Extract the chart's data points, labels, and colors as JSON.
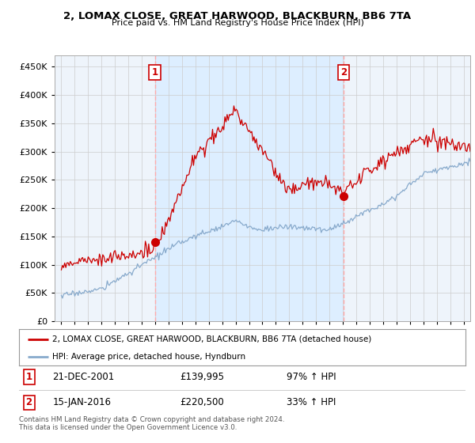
{
  "title1": "2, LOMAX CLOSE, GREAT HARWOOD, BLACKBURN, BB6 7TA",
  "title2": "Price paid vs. HM Land Registry's House Price Index (HPI)",
  "yticks": [
    0,
    50000,
    100000,
    150000,
    200000,
    250000,
    300000,
    350000,
    400000,
    450000
  ],
  "sale1": {
    "date_num": 2001.97,
    "price": 139995,
    "label": "1",
    "hpi_pct": "97% ↑ HPI",
    "date_str": "21-DEC-2001"
  },
  "sale2": {
    "date_num": 2016.04,
    "price": 220500,
    "label": "2",
    "hpi_pct": "33% ↑ HPI",
    "date_str": "15-JAN-2016"
  },
  "line_color_sale": "#cc0000",
  "line_color_hpi": "#88aacc",
  "vline_color": "#ffaaaa",
  "shade_color": "#ddeeff",
  "background_color": "#ffffff",
  "grid_color": "#cccccc",
  "legend_label_sale": "2, LOMAX CLOSE, GREAT HARWOOD, BLACKBURN, BB6 7TA (detached house)",
  "legend_label_hpi": "HPI: Average price, detached house, Hyndburn",
  "footer1": "Contains HM Land Registry data © Crown copyright and database right 2024.",
  "footer2": "This data is licensed under the Open Government Licence v3.0.",
  "xlim_start": 1994.5,
  "xlim_end": 2025.5,
  "ylim_min": 0,
  "ylim_max": 470000
}
